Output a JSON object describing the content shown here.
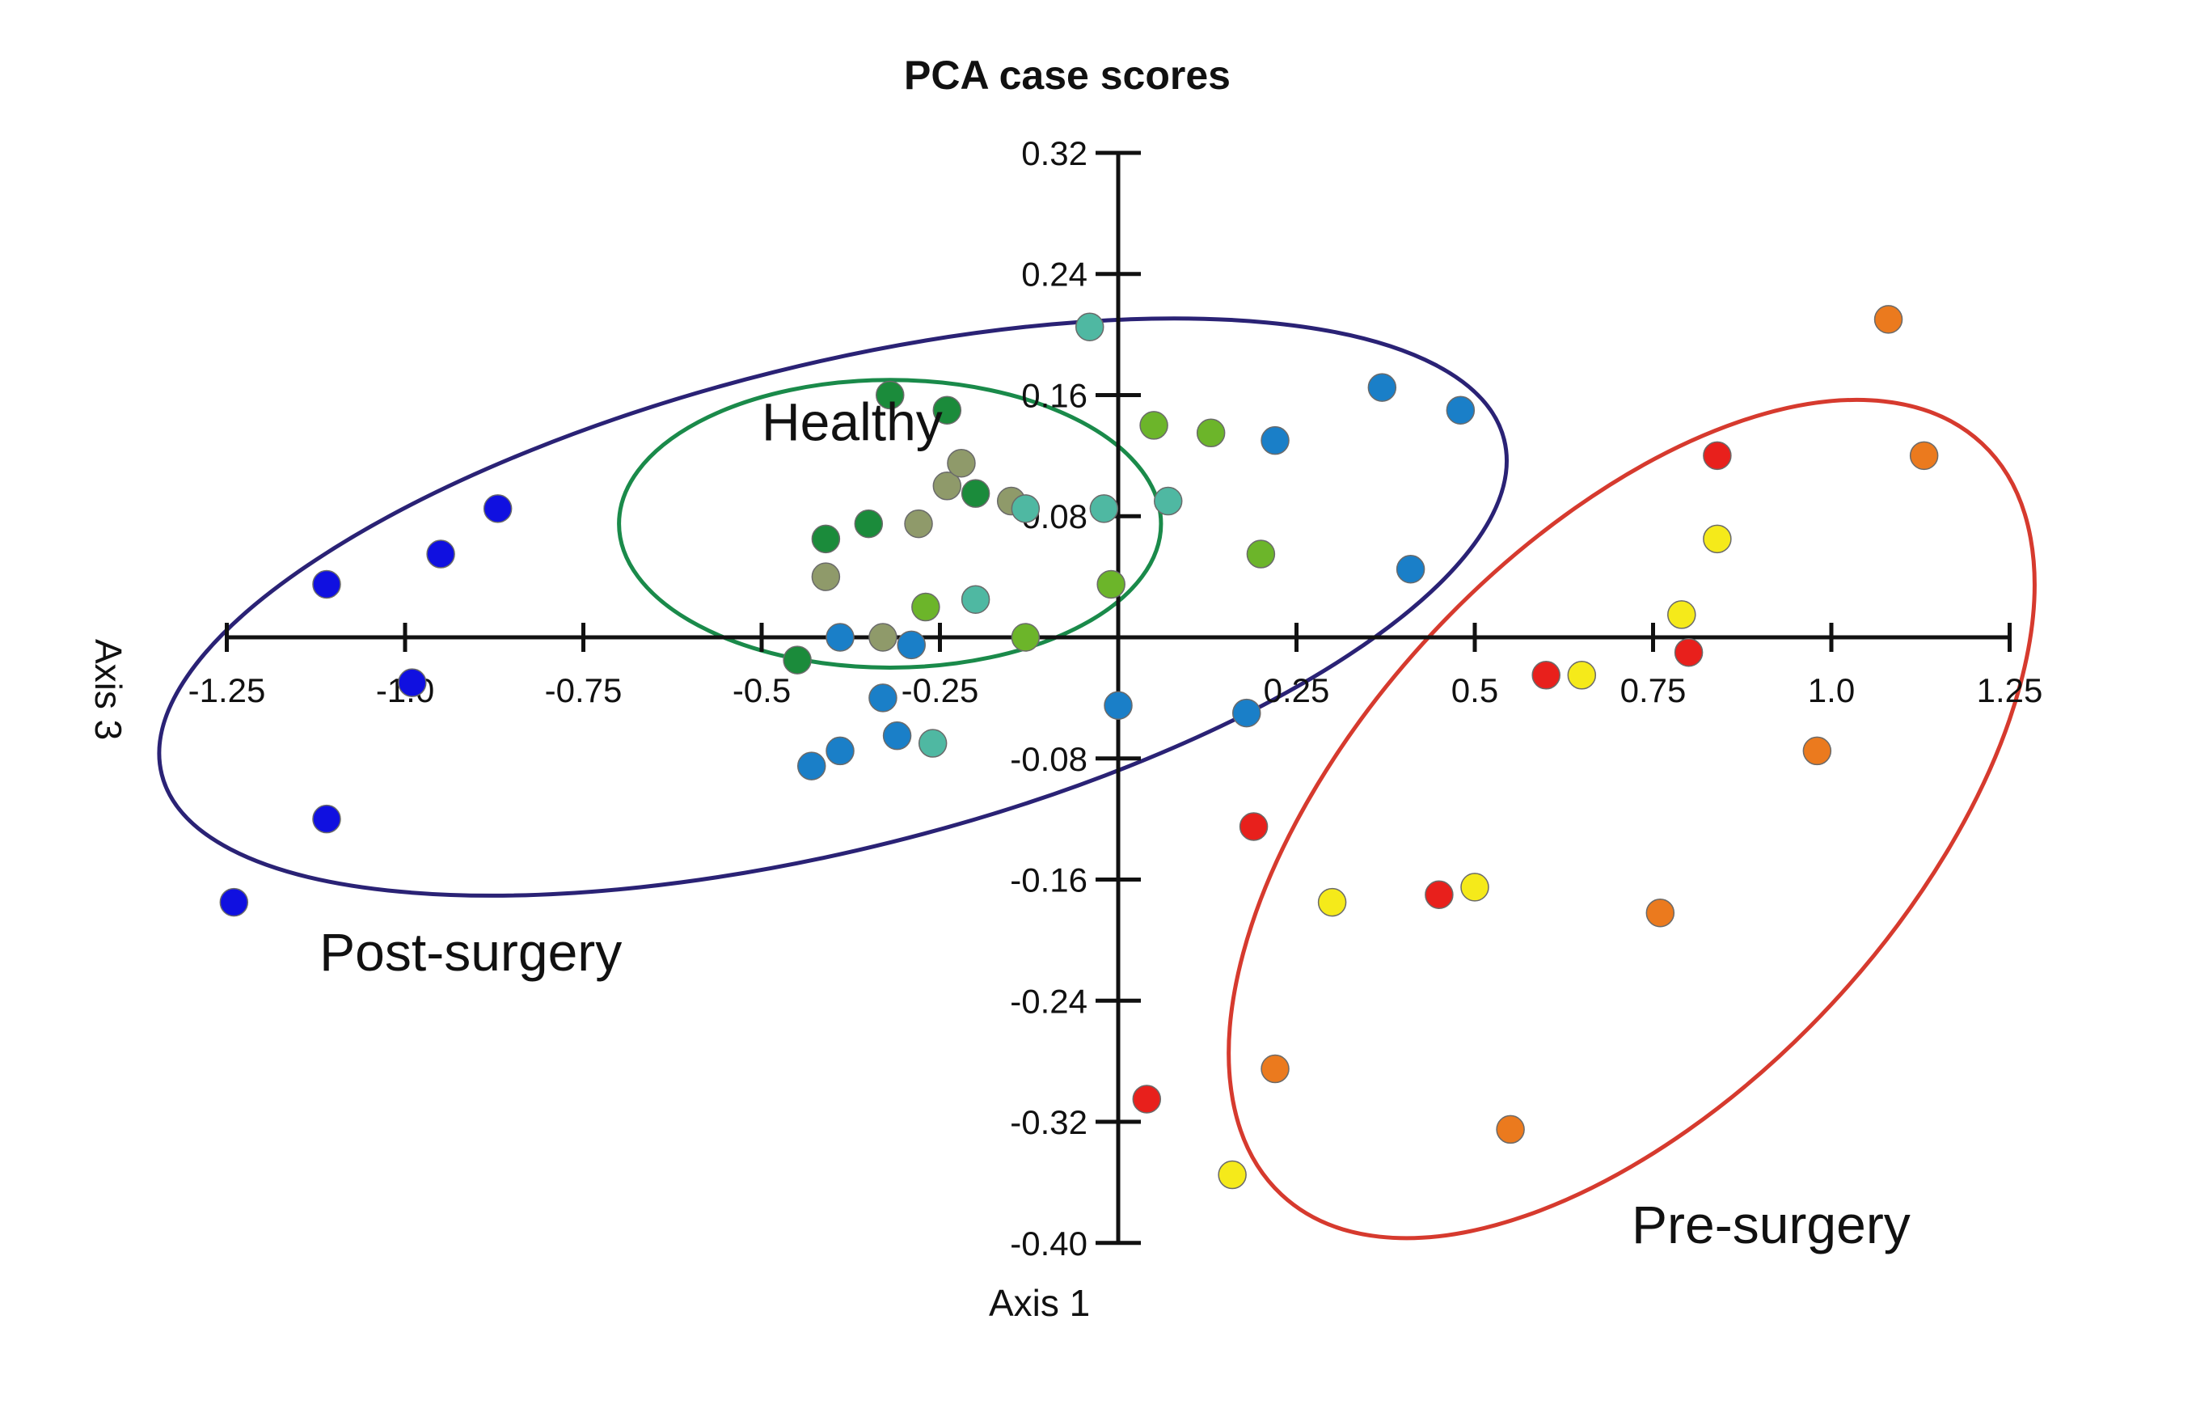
{
  "chart_data": {
    "type": "scatter",
    "title": "PCA case scores",
    "xlabel": "Axis 1",
    "ylabel": "Axis 3",
    "xlim": [
      -1.25,
      1.25
    ],
    "ylim": [
      -0.4,
      0.32
    ],
    "x_ticks": [
      "-1.25",
      "-1.0",
      "-0.75",
      "-0.5",
      "-0.25",
      "0.25",
      "0.5",
      "0.75",
      "1.0",
      "1.25"
    ],
    "x_tick_values": [
      -1.25,
      -1.0,
      -0.75,
      -0.5,
      -0.25,
      0.25,
      0.5,
      0.75,
      1.0,
      1.25
    ],
    "y_ticks": [
      "0.32",
      "0.24",
      "0.16",
      "0.08",
      "-0.08",
      "-0.16",
      "-0.24",
      "-0.32",
      "-0.40"
    ],
    "y_tick_values": [
      0.32,
      0.24,
      0.16,
      0.08,
      -0.08,
      -0.16,
      -0.24,
      -0.32,
      -0.4
    ],
    "groups": [
      {
        "name": "Healthy",
        "ellipse_color": "#1a8a4a",
        "ellipse": {
          "cx": -0.32,
          "cy": 0.075,
          "rx": 0.38,
          "ry": 0.095,
          "angle_deg": 0
        },
        "label_at": [
          -0.5,
          0.13
        ]
      },
      {
        "name": "Post-surgery",
        "ellipse_color": "#2a2275",
        "ellipse": {
          "cx": -0.4,
          "cy": 0.02,
          "rx": 0.97,
          "ry": 0.16,
          "angle_deg": -14
        },
        "label_at": [
          -1.12,
          -0.22
        ]
      },
      {
        "name": "Pre-surgery",
        "ellipse_color": "#d63a2e",
        "ellipse": {
          "cx": 0.72,
          "cy": -0.12,
          "rx": 0.72,
          "ry": 0.18,
          "angle_deg": -47
        },
        "label_at": [
          0.72,
          -0.4
        ]
      }
    ],
    "series": [
      {
        "name": "Post-surgery (blue)",
        "color": "#1010e0",
        "points": [
          [
            -1.24,
            -0.175
          ],
          [
            -1.11,
            -0.12
          ],
          [
            -1.11,
            0.035
          ],
          [
            -0.99,
            -0.03
          ],
          [
            -0.95,
            0.055
          ],
          [
            -0.87,
            0.085
          ]
        ]
      },
      {
        "name": "Mid blue",
        "color": "#1a7fc8",
        "points": [
          [
            -0.43,
            -0.085
          ],
          [
            -0.39,
            -0.075
          ],
          [
            -0.39,
            0.0
          ],
          [
            -0.33,
            -0.04
          ],
          [
            -0.31,
            -0.065
          ],
          [
            -0.29,
            -0.005
          ],
          [
            -0.0,
            -0.045
          ],
          [
            0.18,
            -0.05
          ],
          [
            0.22,
            0.13
          ],
          [
            0.37,
            0.165
          ],
          [
            0.41,
            0.045
          ],
          [
            0.48,
            0.15
          ]
        ]
      },
      {
        "name": "Dark green",
        "color": "#1b8b3b",
        "points": [
          [
            -0.45,
            -0.015
          ],
          [
            -0.41,
            0.065
          ],
          [
            -0.35,
            0.075
          ],
          [
            -0.32,
            0.16
          ],
          [
            -0.24,
            0.15
          ],
          [
            -0.2,
            0.095
          ]
        ]
      },
      {
        "name": "Olive",
        "color": "#8f9a6a",
        "points": [
          [
            -0.41,
            0.04
          ],
          [
            -0.33,
            0.0
          ],
          [
            -0.28,
            0.075
          ],
          [
            -0.24,
            0.1
          ],
          [
            -0.22,
            0.115
          ],
          [
            -0.15,
            0.09
          ]
        ]
      },
      {
        "name": "Teal",
        "color": "#4fb8a2",
        "points": [
          [
            -0.26,
            -0.07
          ],
          [
            -0.2,
            0.025
          ],
          [
            -0.13,
            0.085
          ],
          [
            -0.04,
            0.205
          ],
          [
            -0.02,
            0.085
          ],
          [
            0.07,
            0.09
          ]
        ]
      },
      {
        "name": "Lime",
        "color": "#6cb52a",
        "points": [
          [
            -0.27,
            0.02
          ],
          [
            -0.13,
            0.0
          ],
          [
            -0.01,
            0.035
          ],
          [
            0.05,
            0.14
          ],
          [
            0.13,
            0.135
          ],
          [
            0.2,
            0.055
          ]
        ]
      },
      {
        "name": "Red",
        "color": "#e8201c",
        "points": [
          [
            0.04,
            -0.305
          ],
          [
            0.19,
            -0.125
          ],
          [
            0.45,
            -0.17
          ],
          [
            0.6,
            -0.025
          ],
          [
            0.8,
            -0.01
          ],
          [
            0.84,
            0.12
          ]
        ]
      },
      {
        "name": "Yellow",
        "color": "#f5ea1a",
        "points": [
          [
            0.16,
            -0.355
          ],
          [
            0.3,
            -0.175
          ],
          [
            0.5,
            -0.165
          ],
          [
            0.65,
            -0.025
          ],
          [
            0.79,
            0.015
          ],
          [
            0.84,
            0.065
          ]
        ]
      },
      {
        "name": "Orange",
        "color": "#eb7a1e",
        "points": [
          [
            0.22,
            -0.285
          ],
          [
            0.55,
            -0.325
          ],
          [
            0.76,
            -0.182
          ],
          [
            0.98,
            -0.075
          ],
          [
            1.08,
            0.21
          ],
          [
            1.13,
            0.12
          ]
        ]
      }
    ]
  }
}
